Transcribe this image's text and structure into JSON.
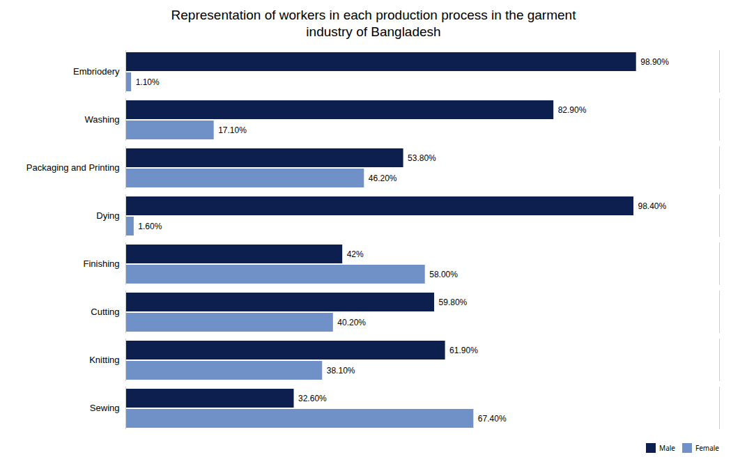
{
  "chart_data": {
    "type": "bar",
    "orientation": "horizontal",
    "title": "Representation of workers in each production process in the garment\nindustry of Bangladesh",
    "categories": [
      "Sewing",
      "Knitting",
      "Cutting",
      "Finishing",
      "Dying",
      "Packaging and Printing",
      "Washing",
      "Embriodery"
    ],
    "series": [
      {
        "name": "Male",
        "color": "#0d1f4e",
        "values": [
          32.6,
          61.9,
          59.8,
          42.0,
          98.4,
          53.8,
          82.9,
          98.9
        ],
        "value_labels": [
          "32.60%",
          "61.90%",
          "59.80%",
          "42%",
          "98.40%",
          "53.80%",
          "82.90%",
          "98.90%"
        ]
      },
      {
        "name": "Female",
        "color": "#7090c8",
        "values": [
          67.4,
          38.1,
          40.2,
          58.0,
          1.6,
          46.2,
          17.1,
          1.1
        ],
        "value_labels": [
          "67.40%",
          "38.10%",
          "40.20%",
          "58.00%",
          "1.60%",
          "46.20%",
          "17.10%",
          "1.10%"
        ]
      }
    ],
    "xlim": [
      0,
      115
    ],
    "xticks": [],
    "tick_labels": "y",
    "data_labels": true,
    "legend": "lower right",
    "grid": false
  }
}
